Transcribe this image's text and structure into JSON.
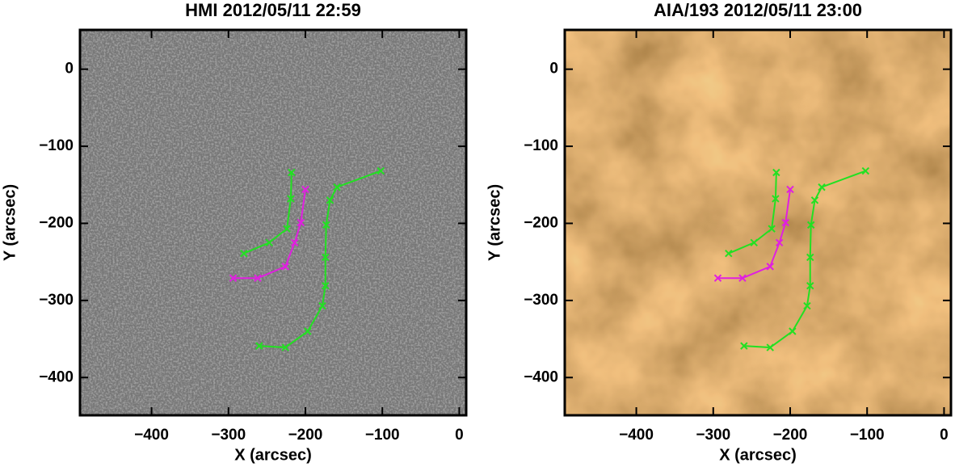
{
  "chart_data": [
    {
      "type": "line",
      "title": "HMI 2012/05/11 22:59",
      "x_label": "X (arcsec)",
      "y_label": "Y (arcsec)",
      "xlim": [
        -493,
        9
      ],
      "ylim": [
        -449,
        51
      ],
      "xticks": [
        {
          "value": -400,
          "label": "−400"
        },
        {
          "value": -300,
          "label": "−300"
        },
        {
          "value": -200,
          "label": "−200"
        },
        {
          "value": -100,
          "label": "−100"
        },
        0
      ],
      "yticks": [
        0,
        {
          "value": -100,
          "label": "−100"
        },
        {
          "value": -200,
          "label": "−200"
        },
        {
          "value": -300,
          "label": "−300"
        },
        {
          "value": -400,
          "label": "−400"
        }
      ],
      "series": [
        {
          "color": "#22e022",
          "x": [
            -218,
            -219,
            -224,
            -247,
            -280
          ],
          "values": [
            -134,
            -168,
            -207,
            -225,
            -239
          ]
        },
        {
          "color": "#e020e0",
          "x": [
            -200,
            -206,
            -214,
            -226,
            -262,
            -294
          ],
          "values": [
            -156,
            -199,
            -225,
            -256,
            -271,
            -271
          ]
        },
        {
          "color": "#22e022",
          "x": [
            -102,
            -159,
            -168,
            -173,
            -174,
            -174,
            -178,
            -197,
            -226,
            -260
          ],
          "values": [
            -132,
            -153,
            -170,
            -202,
            -244,
            -281,
            -307,
            -340,
            -361,
            -359
          ]
        }
      ]
    },
    {
      "type": "line",
      "title": "AIA/193 2012/05/11 23:00",
      "x_label": "X (arcsec)",
      "y_label": "Y (arcsec)",
      "xlim": [
        -493,
        9
      ],
      "ylim": [
        -449,
        51
      ],
      "xticks": [
        {
          "value": -400,
          "label": "−400"
        },
        {
          "value": -300,
          "label": "−300"
        },
        {
          "value": -200,
          "label": "−200"
        },
        {
          "value": -100,
          "label": "−100"
        },
        0
      ],
      "yticks": [
        0,
        {
          "value": -100,
          "label": "−100"
        },
        {
          "value": -200,
          "label": "−200"
        },
        {
          "value": -300,
          "label": "−300"
        },
        {
          "value": -400,
          "label": "−400"
        }
      ],
      "series": [
        {
          "color": "#22e022",
          "x": [
            -218,
            -219,
            -224,
            -247,
            -280
          ],
          "values": [
            -134,
            -168,
            -207,
            -225,
            -239
          ]
        },
        {
          "color": "#e020e0",
          "x": [
            -200,
            -206,
            -214,
            -226,
            -262,
            -294
          ],
          "values": [
            -156,
            -199,
            -225,
            -256,
            -271,
            -271
          ]
        },
        {
          "color": "#22e022",
          "x": [
            -102,
            -159,
            -168,
            -173,
            -174,
            -174,
            -178,
            -197,
            -226,
            -260
          ],
          "values": [
            -132,
            -153,
            -170,
            -202,
            -244,
            -281,
            -307,
            -340,
            -361,
            -359
          ]
        }
      ]
    }
  ]
}
